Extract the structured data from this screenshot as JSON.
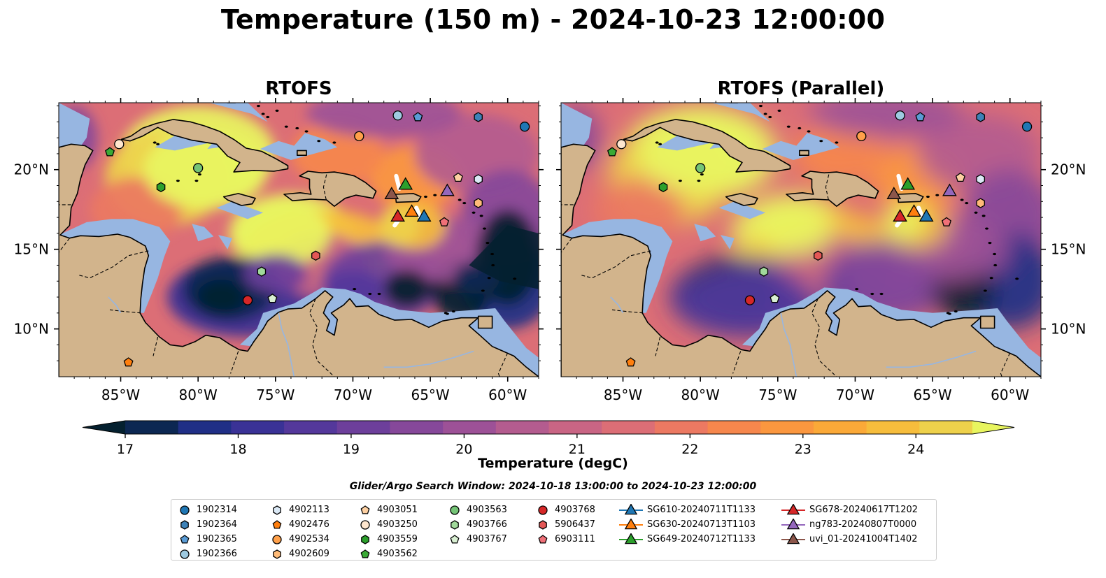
{
  "title": "Temperature (150 m) - 2024-10-23 12:00:00",
  "panels": [
    {
      "title": "RTOFS",
      "variant": "rtofs"
    },
    {
      "title": "RTOFS (Parallel)",
      "variant": "parallel"
    }
  ],
  "map": {
    "lon_range": [
      -89,
      -58
    ],
    "lat_range": [
      7,
      24.2
    ],
    "lon_ticks": [
      {
        "v": -85,
        "label": "85°W"
      },
      {
        "v": -80,
        "label": "80°W"
      },
      {
        "v": -75,
        "label": "75°W"
      },
      {
        "v": -70,
        "label": "70°W"
      },
      {
        "v": -65,
        "label": "65°W"
      },
      {
        "v": -60,
        "label": "60°W"
      }
    ],
    "lat_ticks": [
      {
        "v": 10,
        "label": "10°N"
      },
      {
        "v": 15,
        "label": "15°N"
      },
      {
        "v": 20,
        "label": "20°N"
      }
    ],
    "land_color": "#d2b48c",
    "shelf_color": "#97b6e1"
  },
  "colorbar": {
    "label": "Temperature (degC)",
    "min": 16.75,
    "max": 24.75,
    "ticks": [
      17,
      18,
      19,
      20,
      21,
      22,
      23,
      24
    ],
    "extend": "both",
    "colors": [
      "#04202f",
      "#0c2752",
      "#202f86",
      "#3a3296",
      "#54389b",
      "#6d3f9b",
      "#86489a",
      "#9d5197",
      "#b45c8f",
      "#c96584",
      "#dc6e76",
      "#ec7962",
      "#f6874d",
      "#fb973f",
      "#fba938",
      "#f6bd3c",
      "#eed14b",
      "#e8f55f"
    ]
  },
  "search_window": "Glider/Argo Search Window: 2024-10-18 13:00:00 to 2024-10-23 12:00:00",
  "legend": {
    "columns": [
      [
        {
          "label": "1902314",
          "marker": "circle",
          "color": "#1f77b4"
        },
        {
          "label": "1902364",
          "marker": "hexagon",
          "color": "#3d82b8"
        },
        {
          "label": "1902365",
          "marker": "pentagon",
          "color": "#5a9cd6"
        },
        {
          "label": "1902366",
          "marker": "circle",
          "color": "#9ecae1"
        }
      ],
      [
        {
          "label": "4902113",
          "marker": "hexagon",
          "color": "#dbe9f6"
        },
        {
          "label": "4902476",
          "marker": "pentagon",
          "color": "#ff7f0e"
        },
        {
          "label": "4902534",
          "marker": "circle",
          "color": "#ffa04a"
        },
        {
          "label": "4902609",
          "marker": "hexagon",
          "color": "#ffbb78"
        }
      ],
      [
        {
          "label": "4903051",
          "marker": "pentagon",
          "color": "#fdd0a2"
        },
        {
          "label": "4903250",
          "marker": "circle",
          "color": "#fee6ce"
        },
        {
          "label": "4903559",
          "marker": "hexagon",
          "color": "#2ca02c"
        },
        {
          "label": "4903562",
          "marker": "pentagon",
          "color": "#3aaa35"
        }
      ],
      [
        {
          "label": "4903563",
          "marker": "circle",
          "color": "#74c476"
        },
        {
          "label": "4903766",
          "marker": "hexagon",
          "color": "#a1d99b"
        },
        {
          "label": "4903767",
          "marker": "pentagon",
          "color": "#d9f0d3"
        }
      ],
      [
        {
          "label": "4903768",
          "marker": "circle",
          "color": "#d62728"
        },
        {
          "label": "5906437",
          "marker": "hexagon",
          "color": "#e45756"
        },
        {
          "label": "6903111",
          "marker": "pentagon",
          "color": "#f07078"
        }
      ],
      [
        {
          "label": "SG610-20240711T1133",
          "marker": "triangle",
          "color": "#1f77b4"
        },
        {
          "label": "SG630-20240713T1103",
          "marker": "triangle",
          "color": "#ff7f0e"
        },
        {
          "label": "SG649-20240712T1133",
          "marker": "triangle",
          "color": "#2ca02c"
        }
      ],
      [
        {
          "label": "SG678-20240617T1202",
          "marker": "triangle",
          "color": "#d62728"
        },
        {
          "label": "ng783-20240807T0000",
          "marker": "triangle",
          "color": "#9467bd"
        },
        {
          "label": "uvi_01-20241004T1402",
          "marker": "triangle",
          "color": "#8c564b"
        }
      ]
    ]
  },
  "observations": [
    {
      "id": "1902314",
      "marker": "circle",
      "color": "#1f77b4",
      "lon": -58.9,
      "lat": 22.7
    },
    {
      "id": "1902364",
      "marker": "hexagon",
      "color": "#3d82b8",
      "lon": -61.9,
      "lat": 23.3
    },
    {
      "id": "1902365",
      "marker": "pentagon",
      "color": "#5a9cd6",
      "lon": -65.8,
      "lat": 23.3
    },
    {
      "id": "1902366",
      "marker": "circle",
      "color": "#9ecae1",
      "lon": -67.1,
      "lat": 23.4
    },
    {
      "id": "4902113",
      "marker": "hexagon",
      "color": "#dbe9f6",
      "lon": -61.9,
      "lat": 19.4
    },
    {
      "id": "4902476",
      "marker": "pentagon",
      "color": "#ff7f0e",
      "lon": -84.5,
      "lat": 7.9
    },
    {
      "id": "4902534",
      "marker": "circle",
      "color": "#ffa04a",
      "lon": -69.6,
      "lat": 22.1
    },
    {
      "id": "4902609",
      "marker": "hexagon",
      "color": "#ffbb78",
      "lon": -61.9,
      "lat": 17.9
    },
    {
      "id": "4903051",
      "marker": "pentagon",
      "color": "#fdd0a2",
      "lon": -63.2,
      "lat": 19.5
    },
    {
      "id": "4903250",
      "marker": "circle",
      "color": "#fee6ce",
      "lon": -85.1,
      "lat": 21.6
    },
    {
      "id": "4903559",
      "marker": "hexagon",
      "color": "#2ca02c",
      "lon": -82.4,
      "lat": 18.9
    },
    {
      "id": "4903562",
      "marker": "pentagon",
      "color": "#3aaa35",
      "lon": -85.7,
      "lat": 21.1
    },
    {
      "id": "4903563",
      "marker": "circle",
      "color": "#74c476",
      "lon": -80.0,
      "lat": 20.1
    },
    {
      "id": "4903766",
      "marker": "hexagon",
      "color": "#a1d99b",
      "lon": -75.9,
      "lat": 13.6
    },
    {
      "id": "4903767",
      "marker": "pentagon",
      "color": "#d9f0d3",
      "lon": -75.2,
      "lat": 11.9
    },
    {
      "id": "4903768",
      "marker": "circle",
      "color": "#d62728",
      "lon": -76.8,
      "lat": 11.8
    },
    {
      "id": "5906437",
      "marker": "hexagon",
      "color": "#e45756",
      "lon": -72.4,
      "lat": 14.6
    },
    {
      "id": "6903111",
      "marker": "pentagon",
      "color": "#f07078",
      "lon": -64.1,
      "lat": 16.7
    },
    {
      "id": "SG610-20240711T1133",
      "marker": "triangle",
      "color": "#1f77b4",
      "lon": -65.4,
      "lat": 17.1
    },
    {
      "id": "SG630-20240713T1103",
      "marker": "triangle",
      "color": "#ff7f0e",
      "lon": -66.2,
      "lat": 17.4
    },
    {
      "id": "SG649-20240712T1133",
      "marker": "triangle",
      "color": "#2ca02c",
      "lon": -66.6,
      "lat": 19.1
    },
    {
      "id": "SG678-20240617T1202",
      "marker": "triangle",
      "color": "#d62728",
      "lon": -67.1,
      "lat": 17.1
    },
    {
      "id": "ng783-20240807T0000",
      "marker": "triangle",
      "color": "#9467bd",
      "lon": -63.9,
      "lat": 18.7
    },
    {
      "id": "uvi_01-20241004T1402",
      "marker": "triangle",
      "color": "#8c564b",
      "lon": -67.5,
      "lat": 18.5
    }
  ]
}
